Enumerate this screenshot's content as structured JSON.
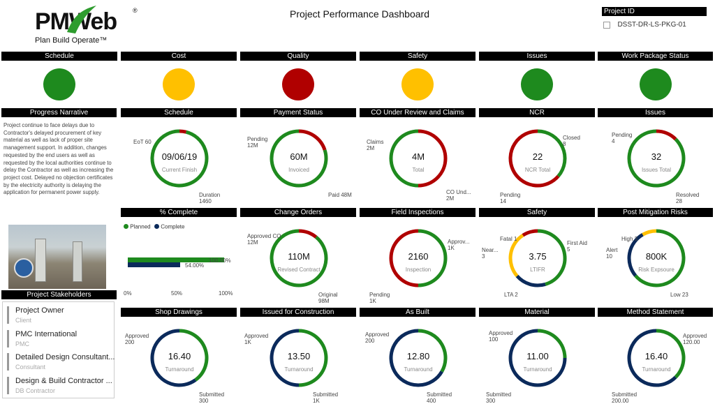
{
  "header": {
    "logo_text": "PMWeb",
    "logo_mark": "®",
    "tagline": "Plan Build Operate™",
    "title": "Project Performance Dashboard",
    "project_id_label": "Project ID",
    "project_id_value": "DSST-DR-LS-PKG-01"
  },
  "status_row": [
    {
      "label": "Schedule",
      "color": "#1e8a1e"
    },
    {
      "label": "Cost",
      "color": "#ffc000"
    },
    {
      "label": "Quality",
      "color": "#b00000"
    },
    {
      "label": "Safety",
      "color": "#ffc000"
    },
    {
      "label": "Issues",
      "color": "#1e8a1e"
    },
    {
      "label": "Work Package Status",
      "color": "#1e8a1e"
    }
  ],
  "narrative": {
    "title": "Progress Narrative",
    "text": "Project continue to face delays due to Contractor's delayed procurement of key material as well as lack of proper site management support. In addition, changes requested by the end users as well as requested by the local authorities continue to delay the Contractor as well as increasing the project cost. Delayed no objection certificates by the electricity authority is delaying the application for permanent power supply."
  },
  "percent_complete": {
    "title": "% Complete",
    "legend_planned": "Planned",
    "legend_complete": "Complete",
    "planned_color": "#1e8a1e",
    "complete_color": "#0b2a5b",
    "planned_value": 100,
    "complete_value": 54,
    "planned_label": "100.00%",
    "complete_label": "54.00%",
    "ticks": [
      "0%",
      "50%",
      "100%"
    ]
  },
  "stakeholders": {
    "title": "Project Stakeholders",
    "items": [
      {
        "name": "Project Owner",
        "role": "Client"
      },
      {
        "name": "PMC International",
        "role": "PMC"
      },
      {
        "name": "Detailed Design Consultant...",
        "role": "Consultant"
      },
      {
        "name": "Design & Build Contractor ...",
        "role": "DB Contractor"
      }
    ]
  },
  "donuts": [
    {
      "title": "Schedule",
      "value": "09/06/19",
      "sub": "Current Finish",
      "segments": [
        {
          "v": 60,
          "c": "#b00000"
        },
        {
          "v": 1460,
          "c": "#1e8a1e"
        }
      ],
      "labels": [
        {
          "t": "EoT 60",
          "x": 18,
          "y": 30
        },
        {
          "t": "Duration\n1460",
          "x": 112,
          "y": 108
        }
      ]
    },
    {
      "title": "Payment Status",
      "value": "60M",
      "sub": "Invoiced",
      "segments": [
        {
          "v": 12,
          "c": "#b00000"
        },
        {
          "v": 48,
          "c": "#1e8a1e"
        }
      ],
      "labels": [
        {
          "t": "Pending\n12M",
          "x": 10,
          "y": 26
        },
        {
          "t": "Paid 48M",
          "x": 126,
          "y": 108
        }
      ]
    },
    {
      "title": "CO Under Review and Claims",
      "value": "4M",
      "sub": "Total",
      "segments": [
        {
          "v": 2,
          "c": "#b00000"
        },
        {
          "v": 2,
          "c": "#1e8a1e"
        }
      ],
      "labels": [
        {
          "t": "Claims\n2M",
          "x": 10,
          "y": 30
        },
        {
          "t": "CO Und...\n2M",
          "x": 124,
          "y": 102
        }
      ]
    },
    {
      "title": "NCR",
      "value": "22",
      "sub": "NCR Total",
      "segments": [
        {
          "v": 8,
          "c": "#1e8a1e"
        },
        {
          "v": 14,
          "c": "#b00000"
        }
      ],
      "labels": [
        {
          "t": "Closed\n8",
          "x": 120,
          "y": 24
        },
        {
          "t": "Pending\n14",
          "x": 30,
          "y": 110
        }
      ]
    },
    {
      "title": "Issues",
      "value": "32",
      "sub": "Issues Total",
      "segments": [
        {
          "v": 4,
          "c": "#b00000"
        },
        {
          "v": 28,
          "c": "#1e8a1e"
        }
      ],
      "labels": [
        {
          "t": "Pending\n4",
          "x": 20,
          "y": 20
        },
        {
          "t": "Resolved\n28",
          "x": 112,
          "y": 108
        }
      ]
    },
    {
      "title": "Change Orders",
      "value": "110M",
      "sub": "Revised Contract",
      "segments": [
        {
          "v": 12,
          "c": "#b00000"
        },
        {
          "v": 98,
          "c": "#1e8a1e"
        }
      ],
      "labels": [
        {
          "t": "Approved CO\n12M",
          "x": 10,
          "y": 22
        },
        {
          "t": "Original\n98M",
          "x": 112,
          "y": 110
        }
      ]
    },
    {
      "title": "Field Inspections",
      "value": "2160",
      "sub": "Inspection",
      "segments": [
        {
          "v": 1,
          "c": "#1e8a1e"
        },
        {
          "v": 1,
          "c": "#b00000"
        }
      ],
      "labels": [
        {
          "t": "Approv...\n1K",
          "x": 126,
          "y": 30
        },
        {
          "t": "Pending\n1K",
          "x": 14,
          "y": 108
        }
      ]
    },
    {
      "title": "Safety",
      "value": "3.75",
      "sub": "LTIFR",
      "segments": [
        {
          "v": 5,
          "c": "#1e8a1e"
        },
        {
          "v": 2,
          "c": "#0b2a5b"
        },
        {
          "v": 3,
          "c": "#ffc000"
        },
        {
          "v": 1,
          "c": "#b00000"
        }
      ],
      "labels": [
        {
          "t": "Fatal 1",
          "x": 30,
          "y": 26
        },
        {
          "t": "First Aid\n5",
          "x": 126,
          "y": 32
        },
        {
          "t": "Near...\n3",
          "x": 4,
          "y": 42
        },
        {
          "t": "LTA 2",
          "x": 36,
          "y": 118
        }
      ]
    },
    {
      "title": "Post Mitigation Risks",
      "value": "800K",
      "sub": "Risk Expsoure",
      "segments": [
        {
          "v": 23,
          "c": "#1e8a1e"
        },
        {
          "v": 10,
          "c": "#0b2a5b"
        },
        {
          "v": 3,
          "c": "#ffc000"
        }
      ],
      "labels": [
        {
          "t": "High 3",
          "x": 34,
          "y": 26
        },
        {
          "t": "Alert\n10",
          "x": 12,
          "y": 42
        },
        {
          "t": "Low 23",
          "x": 104,
          "y": 118
        }
      ]
    },
    {
      "title": "Shop Drawings",
      "value": "16.40",
      "sub": "Turnaround",
      "segments": [
        {
          "v": 200,
          "c": "#1e8a1e"
        },
        {
          "v": 300,
          "c": "#0b2a5b"
        }
      ],
      "labels": [
        {
          "t": "Approved\n200",
          "x": 6,
          "y": 22
        },
        {
          "t": "Submitted\n300",
          "x": 112,
          "y": 110
        }
      ]
    },
    {
      "title": "Issued for Construction",
      "value": "13.50",
      "sub": "Turnaround",
      "segments": [
        {
          "v": 1,
          "c": "#1e8a1e"
        },
        {
          "v": 1,
          "c": "#0b2a5b"
        }
      ],
      "labels": [
        {
          "t": "Approved\n1K",
          "x": 6,
          "y": 22
        },
        {
          "t": "Submitted\n1K",
          "x": 104,
          "y": 110
        }
      ]
    },
    {
      "title": "As Built",
      "value": "12.80",
      "sub": "Turnaround",
      "segments": [
        {
          "v": 200,
          "c": "#1e8a1e"
        },
        {
          "v": 400,
          "c": "#0b2a5b"
        }
      ],
      "labels": [
        {
          "t": "Approved\n200",
          "x": 8,
          "y": 20
        },
        {
          "t": "Submitted\n400",
          "x": 96,
          "y": 110
        }
      ]
    },
    {
      "title": "Material",
      "value": "11.00",
      "sub": "Turnaround",
      "segments": [
        {
          "v": 100,
          "c": "#1e8a1e"
        },
        {
          "v": 300,
          "c": "#0b2a5b"
        }
      ],
      "labels": [
        {
          "t": "Approved\n100",
          "x": 14,
          "y": 18
        },
        {
          "t": "Submitted\n300",
          "x": 10,
          "y": 106
        }
      ]
    },
    {
      "title": "Method Statement",
      "value": "16.40",
      "sub": "Turnaround",
      "segments": [
        {
          "v": 120,
          "c": "#1e8a1e"
        },
        {
          "v": 200,
          "c": "#0b2a5b"
        }
      ],
      "labels": [
        {
          "t": "Approved\n120.00",
          "x": 122,
          "y": 22
        },
        {
          "t": "Submitted\n200.00",
          "x": 20,
          "y": 110
        }
      ]
    }
  ]
}
